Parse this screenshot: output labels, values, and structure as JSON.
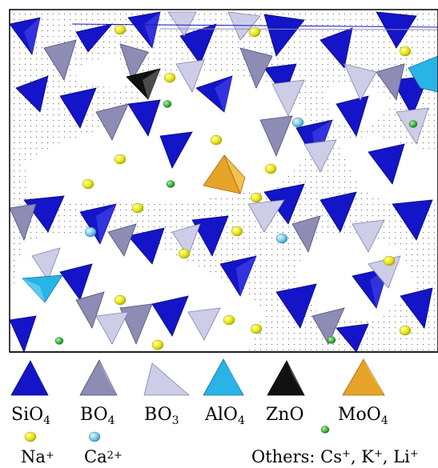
{
  "legend": {
    "sio4": "SiO",
    "sio4_sub": "4",
    "bo4": "BO",
    "bo4_sub": "4",
    "bo3": "BO",
    "bo3_sub": "3",
    "alo4": "AlO",
    "alo4_sub": "4",
    "zno": "ZnO",
    "moo4": "MoO",
    "moo4_sub": "4",
    "na": "Na",
    "na_sup": "+",
    "ca": "Ca",
    "ca_sup": "2+",
    "others": "Others: Cs",
    "others_cs_sup": "+",
    "others_k": ", K",
    "others_k_sup": "+",
    "others_li": ", Li",
    "others_li_sup": "+"
  },
  "colors": {
    "sio4": "#1414c8",
    "bo4": "#8c8cb4",
    "bo3": "#c8c8e6",
    "alo4": "#28b4e6",
    "zno": "#111111",
    "moo4": "#e6a428",
    "na": "#e6e614",
    "ca": "#78c8e6",
    "others": "#3cb43c"
  }
}
